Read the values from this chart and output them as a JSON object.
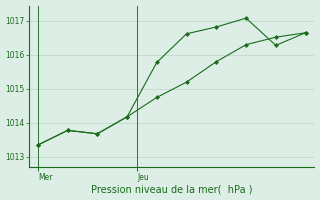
{
  "line_a_x": [
    0,
    1,
    2,
    3,
    4,
    5,
    6,
    7,
    8,
    9
  ],
  "line_a_y": [
    1013.35,
    1013.78,
    1013.68,
    1014.18,
    1014.75,
    1015.2,
    1015.8,
    1016.3,
    1016.52,
    1016.65
  ],
  "line_b_x": [
    0,
    1,
    2,
    3,
    4,
    5,
    6,
    7,
    8,
    9
  ],
  "line_b_y": [
    1013.35,
    1013.78,
    1013.68,
    1014.18,
    1015.78,
    1016.62,
    1016.82,
    1017.08,
    1016.28,
    1016.65
  ],
  "yticks": [
    1013,
    1014,
    1015,
    1016,
    1017
  ],
  "xtick_positions": [
    0.0,
    3.33
  ],
  "xtick_labels": [
    "Mer",
    "Jeu"
  ],
  "xlabel": "Pression niveau de la mer(  hPa )",
  "line_color": "#1a6b1a",
  "bg_color": "#dceee6",
  "grid_color": "#b8d8c8",
  "ylim": [
    1012.7,
    1017.45
  ],
  "xlim": [
    -0.3,
    9.3
  ],
  "vline_positions": [
    0.0,
    3.33
  ]
}
